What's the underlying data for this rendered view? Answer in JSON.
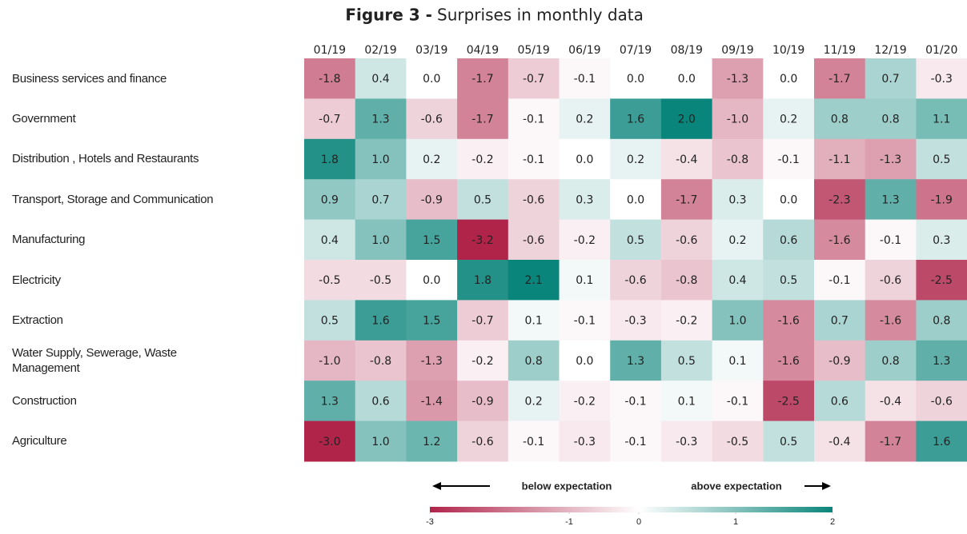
{
  "chart_data": {
    "type": "heatmap",
    "title_bold": "Figure 3 -",
    "title": "Surprises in monthly data",
    "x": [
      "01/19",
      "02/19",
      "03/19",
      "04/19",
      "05/19",
      "06/19",
      "07/19",
      "08/19",
      "09/19",
      "10/19",
      "11/19",
      "12/19",
      "01/20"
    ],
    "y": [
      "Business services and finance",
      "Government",
      "Distribution , Hotels and Restaurants",
      "Transport, Storage and Communication",
      "Manufacturing",
      "Electricity",
      "Extraction",
      "Water Supply, Sewerage, Waste Management",
      "Construction",
      "Agriculture"
    ],
    "values": [
      [
        -1.8,
        0.4,
        0.0,
        -1.7,
        -0.7,
        -0.1,
        0.0,
        0.0,
        -1.3,
        0.0,
        -1.7,
        0.7,
        -0.3
      ],
      [
        -0.7,
        1.3,
        -0.6,
        -1.7,
        -0.1,
        0.2,
        1.6,
        2.0,
        -1.0,
        0.2,
        0.8,
        0.8,
        1.1
      ],
      [
        1.8,
        1.0,
        0.2,
        -0.2,
        -0.1,
        0.0,
        0.2,
        -0.4,
        -0.8,
        -0.1,
        -1.1,
        -1.3,
        0.5
      ],
      [
        0.9,
        0.7,
        -0.9,
        0.5,
        -0.6,
        0.3,
        0.0,
        -1.7,
        0.3,
        0.0,
        -2.3,
        1.3,
        -1.9
      ],
      [
        0.4,
        1.0,
        1.5,
        -3.2,
        -0.6,
        -0.2,
        0.5,
        -0.6,
        0.2,
        0.6,
        -1.6,
        -0.1,
        0.3
      ],
      [
        -0.5,
        -0.5,
        0.0,
        1.8,
        2.1,
        0.1,
        -0.6,
        -0.8,
        0.4,
        0.5,
        -0.1,
        -0.6,
        -2.5
      ],
      [
        0.5,
        1.6,
        1.5,
        -0.7,
        0.1,
        -0.1,
        -0.3,
        -0.2,
        1.0,
        -1.6,
        0.7,
        -1.6,
        0.8
      ],
      [
        -1.0,
        -0.8,
        -1.3,
        -0.2,
        0.8,
        0.0,
        1.3,
        0.5,
        0.1,
        -1.6,
        -0.9,
        0.8,
        1.3
      ],
      [
        1.3,
        0.6,
        -1.4,
        -0.9,
        0.2,
        -0.2,
        -0.1,
        0.1,
        -0.1,
        -2.5,
        0.6,
        -0.4,
        -0.6
      ],
      [
        -3.0,
        1.0,
        1.2,
        -0.6,
        -0.1,
        -0.3,
        -0.1,
        -0.3,
        -0.5,
        0.5,
        -0.4,
        -1.7,
        1.6
      ]
    ],
    "value_labels": [
      [
        "-1.8",
        "0.4",
        "0.0",
        "-1.7",
        "-0.7",
        "-0.1",
        "0.0",
        "0.0",
        "-1.3",
        "0.0",
        "-1.7",
        "0.7",
        "-0.3"
      ],
      [
        "-0.7",
        "1.3",
        "-0.6",
        "-1.7",
        "-0.1",
        "0.2",
        "1.6",
        "2.0",
        "-1.0",
        "0.2",
        "0.8",
        "0.8",
        "1.1"
      ],
      [
        "1.8",
        "1.0",
        "0.2",
        "-0.2",
        "-0.1",
        "0.0",
        "0.2",
        "-0.4",
        "-0.8",
        "-0.1",
        "-1.1",
        "-1.3",
        "0.5"
      ],
      [
        "0.9",
        "0.7",
        "-0.9",
        "0.5",
        "-0.6",
        "0.3",
        "0.0",
        "-1.7",
        "0.3",
        "0.0",
        "-2.3",
        "1.3",
        "-1.9"
      ],
      [
        "0.4",
        "1.0",
        "1.5",
        "-3.2",
        "-0.6",
        "-0.2",
        "0.5",
        "-0.6",
        "0.2",
        "0.6",
        "-1.6",
        "-0.1",
        "0.3"
      ],
      [
        "-0.5",
        "-0.5",
        "0.0",
        "1.8",
        "2.1",
        "0.1",
        "-0.6",
        "-0.8",
        "0.4",
        "0.5",
        "-0.1",
        "-0.6",
        "-2.5"
      ],
      [
        "0.5",
        "1.6",
        "1.5",
        "-0.7",
        "0.1",
        "-0.1",
        "-0.3",
        "-0.2",
        "1.0",
        "-1.6",
        "0.7",
        "-1.6",
        "0.8"
      ],
      [
        "-1.0",
        "-0.8",
        "-1.3",
        "-0.2",
        "0.8",
        "0.0",
        "1.3",
        "0.5",
        "0.1",
        "-1.6",
        "-0.9",
        "0.8",
        "1.3"
      ],
      [
        "1.3",
        "0.6",
        "-1.4",
        "-0.9",
        "0.2",
        "-0.2",
        "-0.1",
        "0.1",
        "-0.1",
        "-2.5",
        "0.6",
        "-0.4",
        "-0.6"
      ],
      [
        "-3.0",
        "1.0",
        "1.2",
        "-0.6",
        "-0.1",
        "-0.3",
        "-0.1",
        "-0.3",
        "-0.5",
        "0.5",
        "-0.4",
        "-1.7",
        "1.6"
      ]
    ],
    "colors": {
      "low": "#b0244a",
      "mid": "#ffffff",
      "high": "#0a857b"
    },
    "colorbar": {
      "lim": [
        -3,
        2
      ],
      "ticks": [
        -3,
        -1,
        0,
        1,
        2
      ]
    },
    "annotations": [
      "below expectation",
      "above expectation"
    ]
  }
}
